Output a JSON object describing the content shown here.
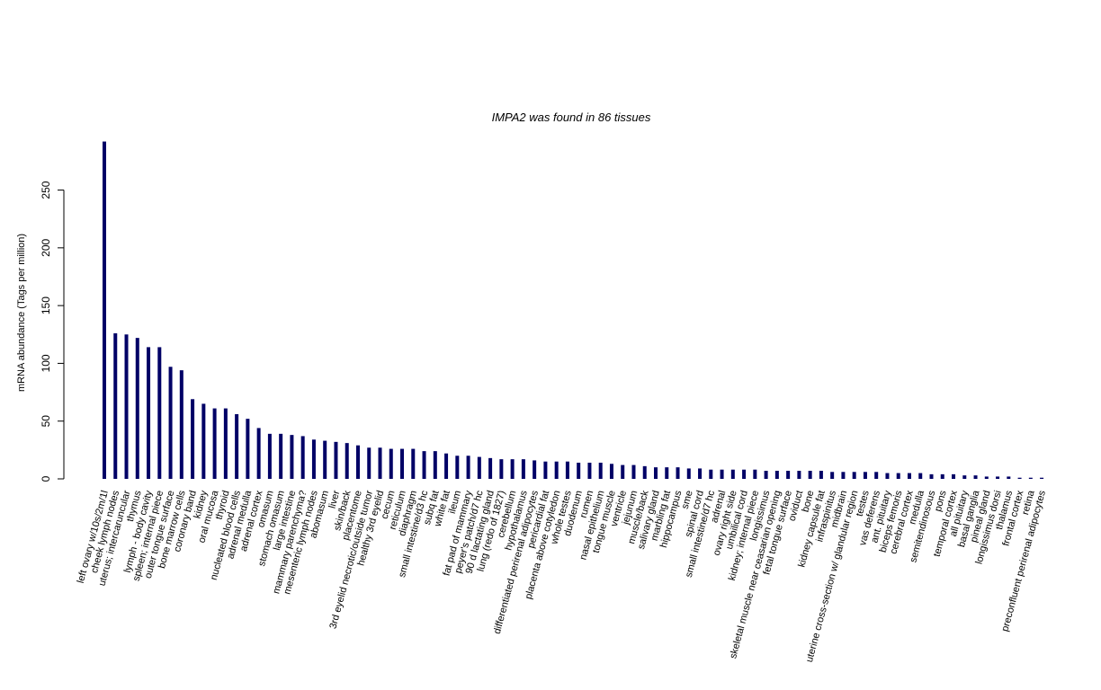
{
  "chart_data": {
    "type": "bar",
    "title": "IMPA2  was found in  86  tissues",
    "xlabel": "",
    "ylabel": "mRNA abundance (Tags per million)",
    "ylim": [
      0,
      292
    ],
    "yticks": [
      0,
      50,
      100,
      150,
      200,
      250
    ],
    "grid": false,
    "bar_color": "#000066",
    "categories": [
      "left ovary w/10s/2m/1l",
      "cheek lymph nodes",
      "uterus; intercaruncular",
      "thymus",
      "lymph - body cavity",
      "spleen; internal piece",
      "outer tongue surface",
      "bone marrow cells",
      "coronary band",
      "kidney",
      "oral mucosa",
      "thyroid",
      "nucleated blood cells",
      "adrenal medulla",
      "adrenal cortex",
      "omasum",
      "stomach omasum",
      "large intestine",
      "mammary parenchyma?",
      "mesenteric lymph nodes",
      "abomasum",
      "liver",
      "skin/back",
      "placentome",
      "3rd eyelid necrotic/outside tumor",
      "healthy 3rd eyelid",
      "cecum",
      "reticulum",
      "diaphragm",
      "small intestine/d3 hc",
      "subq fat",
      "white fat",
      "ileum",
      "fat pad of mammary",
      "peyer's patch/d7 hc",
      "90 d lactating gland",
      "lung (redo of 1827)",
      "cerebellum",
      "hypothalamus",
      "differentiated perirenal adipocytes",
      "pericardial fat",
      "placenta above cotyledon",
      "whole testes",
      "duodenum",
      "rumen",
      "nasal epithelium",
      "tongue muscle",
      "ventricle",
      "jejunum",
      "muscle/back",
      "salivary gland",
      "marbling fat",
      "hippocampus",
      "sme",
      "spinal cord",
      "small intestine/d7 hc",
      "adrenal",
      "ovary right side",
      "umbilical cord",
      "kidney; internal piece",
      "longissimus",
      "skeletal muscle near ceasarian opening",
      "fetal tongue surface",
      "oviduct",
      "bone",
      "kidney capsule fat",
      "infraspinitus",
      "midbrain",
      "uterine cross-section w/ glandular region",
      "testes",
      "vas deferens",
      "ant. pituitary",
      "biceps femoris",
      "cerebral cortex",
      "medulla",
      "semitendinosous",
      "pons",
      "temporal cortex",
      "all pituitary",
      "basal ganglia",
      "pineal gland",
      "longissimus dorsi",
      "thalamus",
      "frontal cortex",
      "retina",
      "preconfluent perirenal adipocytes"
    ],
    "values": [
      292,
      126,
      125,
      122,
      114,
      114,
      97,
      94,
      69,
      65,
      61,
      61,
      56,
      52,
      44,
      39,
      39,
      38,
      37,
      34,
      33,
      32,
      31,
      29,
      27,
      27,
      26,
      26,
      26,
      24,
      24,
      22,
      20,
      20,
      19,
      18,
      17,
      17,
      17,
      16,
      15,
      15,
      15,
      14,
      14,
      14,
      13,
      12,
      12,
      11,
      10,
      10,
      10,
      9,
      9,
      8,
      8,
      8,
      8,
      8,
      7,
      7,
      7,
      7,
      7,
      7,
      6,
      6,
      6,
      6,
      6,
      5,
      5,
      5,
      5,
      4,
      4,
      4,
      3,
      3,
      2,
      2,
      2,
      1,
      1,
      1
    ]
  }
}
